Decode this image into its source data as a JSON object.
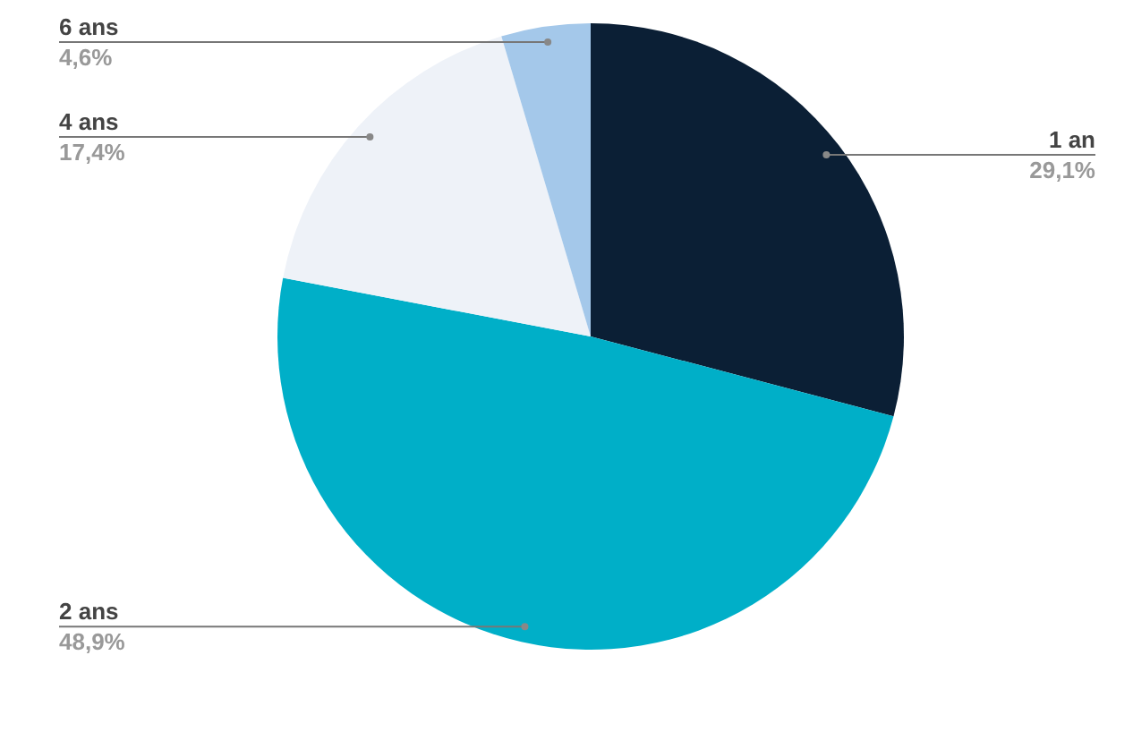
{
  "chart_data": {
    "type": "pie",
    "categories": [
      "1 an",
      "2 ans",
      "4 ans",
      "6 ans"
    ],
    "values": [
      29.1,
      48.9,
      17.4,
      4.6
    ],
    "value_labels": [
      "29,1%",
      "48,9%",
      "17,4%",
      "4,6%"
    ],
    "colors": [
      "#0b1f35",
      "#00afc8",
      "#eef2f8",
      "#a4c8ea"
    ],
    "legend": false
  }
}
